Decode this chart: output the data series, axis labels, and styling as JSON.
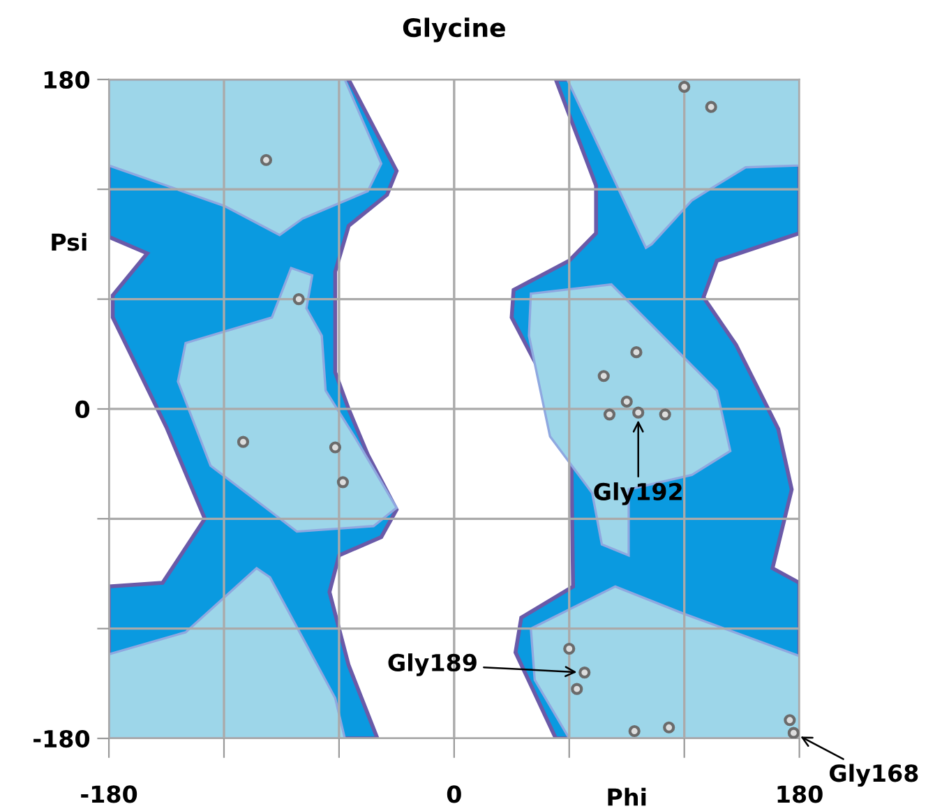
{
  "chart_data": {
    "type": "scatter",
    "title": "Glycine",
    "xlabel": "Phi",
    "ylabel": "Psi",
    "xlim": [
      -180,
      180
    ],
    "ylim": [
      -180,
      180
    ],
    "xticks": [
      -180,
      {
        "value": -120,
        "label": null
      },
      {
        "value": -60,
        "label": null
      },
      0,
      {
        "value": 60,
        "label": null
      },
      {
        "value": 120,
        "label": null
      },
      180
    ],
    "yticks": [
      -180,
      {
        "value": -120,
        "label": null
      },
      {
        "value": -60,
        "label": null
      },
      0,
      {
        "value": 60,
        "label": null
      },
      {
        "value": 120,
        "label": null
      },
      180
    ],
    "grid": true,
    "marker": "circle",
    "series": [
      {
        "color": "#6b6b6b",
        "x": [
          -98,
          -81,
          -110,
          -62,
          -58,
          120,
          134,
          95,
          78,
          90,
          81,
          96,
          110,
          60,
          68,
          64,
          94,
          112,
          175,
          177
        ],
        "values": [
          136,
          60,
          -18,
          -21,
          -40,
          176,
          165,
          31,
          18,
          4,
          -3,
          -2,
          -3,
          -131,
          -144,
          -153,
          -176,
          -174,
          -170,
          -177
        ]
      }
    ],
    "annotations": [
      {
        "text": "Gly192",
        "x": 96,
        "y": -2
      },
      {
        "text": "Gly189",
        "x": 68,
        "y": -144
      },
      {
        "text": "Gly168",
        "x": 177,
        "y": -177
      }
    ]
  }
}
